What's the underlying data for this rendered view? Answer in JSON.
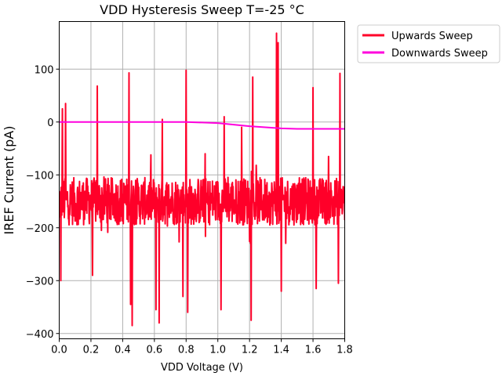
{
  "chart_data": {
    "type": "line",
    "title": "VDD Hysteresis Sweep T=-25 °C",
    "xlabel": "VDD Voltage (V)",
    "ylabel": "IREF Current (pA)",
    "xlim": [
      0.0,
      1.8
    ],
    "ylim": [
      -410,
      190
    ],
    "x_ticks": [
      "0.0",
      "0.2",
      "0.4",
      "0.6",
      "0.8",
      "1.0",
      "1.2",
      "1.4",
      "1.6",
      "1.8"
    ],
    "y_ticks": [
      "−400",
      "−300",
      "−200",
      "−100",
      "0",
      "100"
    ],
    "x_tick_values": [
      0.0,
      0.2,
      0.4,
      0.6,
      0.8,
      1.0,
      1.2,
      1.4,
      1.6,
      1.8
    ],
    "y_tick_values": [
      -400,
      -300,
      -200,
      -100,
      0,
      100
    ],
    "grid": true,
    "legend_position": "outside-top-right",
    "series": [
      {
        "name": "Upwards Sweep",
        "color": "#ff0029",
        "description_of_shape": "noisy trace centred near -150 pA with noise band roughly -100 to -200 pA",
        "baseline": -150,
        "noise_amplitude": 45,
        "spikes": [
          {
            "x": 0.02,
            "y": 25
          },
          {
            "x": 0.04,
            "y": 35
          },
          {
            "x": 0.01,
            "y": -300
          },
          {
            "x": 0.24,
            "y": 68
          },
          {
            "x": 0.21,
            "y": -290
          },
          {
            "x": 0.44,
            "y": 93
          },
          {
            "x": 0.46,
            "y": -385
          },
          {
            "x": 0.45,
            "y": -345
          },
          {
            "x": 0.61,
            "y": -355
          },
          {
            "x": 0.63,
            "y": -380
          },
          {
            "x": 0.65,
            "y": 5
          },
          {
            "x": 0.78,
            "y": -330
          },
          {
            "x": 0.8,
            "y": 98
          },
          {
            "x": 0.81,
            "y": -360
          },
          {
            "x": 1.02,
            "y": -355
          },
          {
            "x": 1.04,
            "y": 10
          },
          {
            "x": 1.21,
            "y": -375
          },
          {
            "x": 1.22,
            "y": 85
          },
          {
            "x": 1.37,
            "y": 168
          },
          {
            "x": 1.38,
            "y": 150
          },
          {
            "x": 1.4,
            "y": -320
          },
          {
            "x": 1.6,
            "y": 65
          },
          {
            "x": 1.62,
            "y": -315
          },
          {
            "x": 1.76,
            "y": -305
          },
          {
            "x": 1.77,
            "y": 92
          },
          {
            "x": 1.15,
            "y": -10
          },
          {
            "x": 0.92,
            "y": -60
          }
        ]
      },
      {
        "name": "Downwards Sweep",
        "color": "#ff00dd",
        "x": [
          0.0,
          0.2,
          0.4,
          0.6,
          0.8,
          0.9,
          1.0,
          1.1,
          1.2,
          1.3,
          1.4,
          1.5,
          1.6,
          1.7,
          1.8
        ],
        "y": [
          0,
          0,
          0,
          0,
          0,
          -1,
          -2,
          -5,
          -8,
          -10,
          -12,
          -13,
          -13,
          -13,
          -13
        ]
      }
    ]
  }
}
